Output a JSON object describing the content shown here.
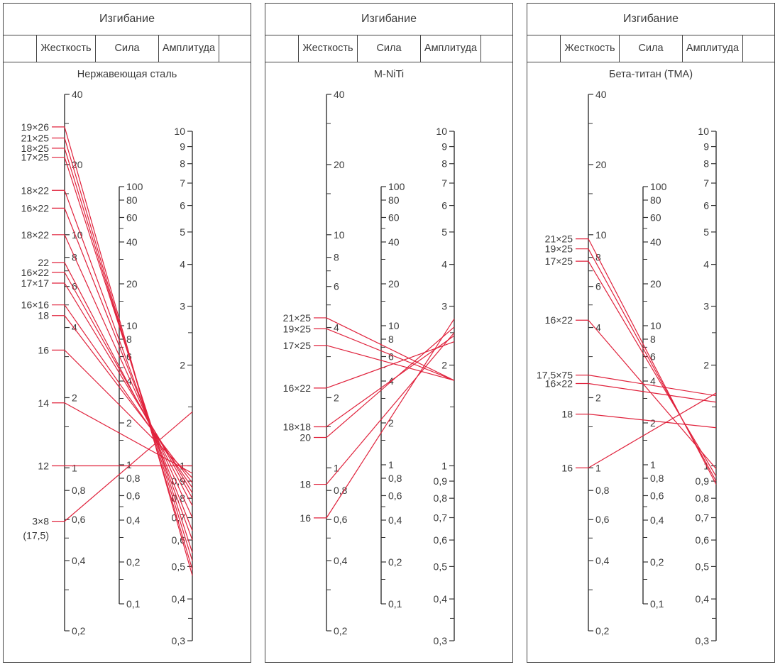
{
  "colors": {
    "line": "#e0223c",
    "axis": "#333333",
    "text": "#3a3a3a"
  },
  "panels": [
    {
      "header": "Изгибание",
      "columns": [
        "Жесткость",
        "Сила",
        "Амплитуда"
      ],
      "title": "Нержавеющая сталь",
      "chart_data": {
        "type": "nomogram",
        "scale": "log",
        "axes": {
          "stiffness": {
            "ticks": [
              "40",
              "20",
              "10",
              "8",
              "6",
              "4",
              "2",
              "1",
              "0,8",
              "0,6",
              "0,4",
              "0,2"
            ]
          },
          "force": {
            "ticks": [
              "100",
              "80",
              "60",
              "40",
              "20",
              "10",
              "8",
              "6",
              "4",
              "2",
              "1",
              "0,8",
              "0,6",
              "0,4",
              "0,2",
              "0,1"
            ]
          },
          "amplitude": {
            "ticks": [
              "10",
              "9",
              "8",
              "7",
              "6",
              "5",
              "4",
              "3",
              "2",
              "1",
              "0,9",
              "0,8",
              "0,7",
              "0,6",
              "0,5",
              "0,4",
              "0,3"
            ]
          }
        },
        "wires": [
          {
            "label": "19×26",
            "stiffness": 29,
            "amplitude": 0.47
          },
          {
            "label": "21×25",
            "stiffness": 26,
            "amplitude": 0.49
          },
          {
            "label": "18×25",
            "stiffness": 23.5,
            "amplitude": 0.52
          },
          {
            "label": "17×25",
            "stiffness": 21.5,
            "amplitude": 0.55
          },
          {
            "label": "18×22",
            "stiffness": 15.5,
            "amplitude": 0.6
          },
          {
            "label": "16×22",
            "stiffness": 13,
            "amplitude": 0.64
          },
          {
            "label": "18×22",
            "stiffness": 10,
            "amplitude": 0.7
          },
          {
            "label": "22",
            "stiffness": 7.6,
            "amplitude": 0.76
          },
          {
            "label": "16×22",
            "stiffness": 6.9,
            "amplitude": 0.8
          },
          {
            "label": "17×17",
            "stiffness": 6.2,
            "amplitude": 0.83
          },
          {
            "label": "16×16",
            "stiffness": 5,
            "amplitude": 0.86
          },
          {
            "label": "18",
            "stiffness": 4.5,
            "amplitude": 0.89
          },
          {
            "label": "16",
            "stiffness": 3.2,
            "amplitude": 0.92
          },
          {
            "label": "14",
            "stiffness": 1.9,
            "amplitude": 0.95
          },
          {
            "label": "12",
            "stiffness": 1.02,
            "amplitude": 1.0
          },
          {
            "label": "3×8",
            "label2": "(17,5)",
            "stiffness": 0.59,
            "amplitude": 1.45
          }
        ]
      }
    },
    {
      "header": "Изгибание",
      "columns": [
        "Жесткость",
        "Сила",
        "Амплитуда"
      ],
      "title": "M-NiTi",
      "chart_data": {
        "type": "nomogram",
        "scale": "log",
        "axes": {
          "stiffness": {
            "ticks": [
              "40",
              "20",
              "10",
              "8",
              "6",
              "4",
              "2",
              "1",
              "0,8",
              "0,6",
              "0,4",
              "0,2"
            ]
          },
          "force": {
            "ticks": [
              "100",
              "80",
              "60",
              "40",
              "20",
              "10",
              "8",
              "6",
              "4",
              "2",
              "1",
              "0,8",
              "0,6",
              "0,4",
              "0,2",
              "0,1"
            ]
          },
          "amplitude": {
            "ticks": [
              "10",
              "9",
              "8",
              "7",
              "6",
              "5",
              "4",
              "3",
              "2",
              "1",
              "0,9",
              "0,8",
              "0,7",
              "0,6",
              "0,5",
              "0,4",
              "0,3"
            ]
          }
        },
        "wires": [
          {
            "label": "21×25",
            "stiffness": 4.4,
            "amplitude": 1.8
          },
          {
            "label": "19×25",
            "stiffness": 3.95,
            "amplitude": 1.8
          },
          {
            "label": "17×25",
            "stiffness": 3.35,
            "amplitude": 1.8
          },
          {
            "label": "16×22",
            "stiffness": 2.2,
            "amplitude": 2.35
          },
          {
            "label": "18×18",
            "stiffness": 1.5,
            "amplitude": 2.45
          },
          {
            "label": "20",
            "stiffness": 1.35,
            "amplitude": 2.6
          },
          {
            "label": "18",
            "stiffness": 0.85,
            "amplitude": 2.5
          },
          {
            "label": "16",
            "stiffness": 0.61,
            "amplitude": 2.75
          }
        ]
      }
    },
    {
      "header": "Изгибание",
      "columns": [
        "Жесткость",
        "Сила",
        "Амплитуда"
      ],
      "title": "Бета-титан (ТМА)",
      "chart_data": {
        "type": "nomogram",
        "scale": "log",
        "axes": {
          "stiffness": {
            "ticks": [
              "40",
              "20",
              "10",
              "8",
              "6",
              "4",
              "2",
              "1",
              "0,8",
              "0,6",
              "0,4",
              "0,2"
            ]
          },
          "force": {
            "ticks": [
              "100",
              "80",
              "60",
              "40",
              "20",
              "10",
              "8",
              "6",
              "4",
              "2",
              "1",
              "0,8",
              "0,6",
              "0,4",
              "0,2",
              "0,1"
            ]
          },
          "amplitude": {
            "ticks": [
              "10",
              "9",
              "8",
              "7",
              "6",
              "5",
              "4",
              "3",
              "2",
              "1",
              "0,9",
              "0,8",
              "0,7",
              "0,6",
              "0,5",
              "0,4",
              "0,3"
            ]
          }
        },
        "wires": [
          {
            "label": "21×25",
            "stiffness": 9.6,
            "amplitude": 0.88
          },
          {
            "label": "19×25",
            "stiffness": 8.7,
            "amplitude": 0.9
          },
          {
            "label": "17×25",
            "stiffness": 7.7,
            "amplitude": 0.93
          },
          {
            "label": "16×22",
            "stiffness": 4.3,
            "amplitude": 0.98
          },
          {
            "label": "17,5×75",
            "stiffness": 2.5,
            "amplitude": 1.62
          },
          {
            "label": "16×22",
            "stiffness": 2.3,
            "amplitude": 1.55
          },
          {
            "label": "18",
            "stiffness": 1.7,
            "amplitude": 1.3
          },
          {
            "label": "16",
            "stiffness": 1.0,
            "amplitude": 1.65
          }
        ]
      }
    }
  ]
}
